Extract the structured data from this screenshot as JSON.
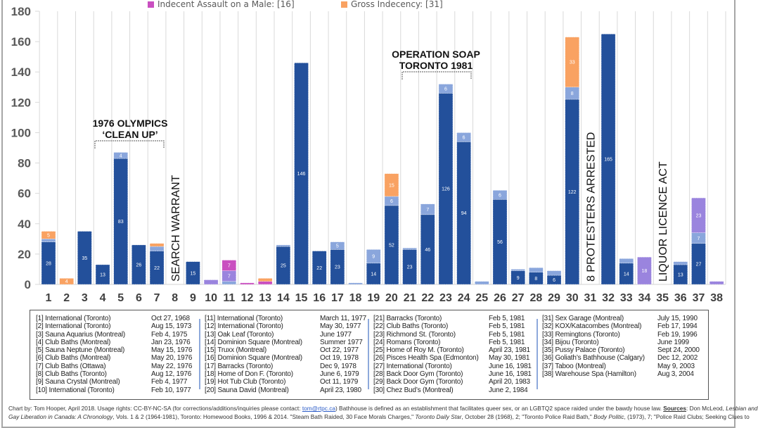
{
  "chart_data": {
    "type": "bar",
    "stacked": true,
    "categories": [
      "1",
      "2",
      "3",
      "4",
      "5",
      "6",
      "7",
      "8",
      "9",
      "10",
      "11",
      "12",
      "13",
      "14",
      "15",
      "16",
      "17",
      "18",
      "19",
      "20",
      "21",
      "22",
      "23",
      "24",
      "25",
      "26",
      "27",
      "28",
      "29",
      "30",
      "31",
      "32",
      "33",
      "34",
      "35",
      "36",
      "37",
      "38"
    ],
    "ylim": [
      0,
      180
    ],
    "yticks": [
      0,
      20,
      40,
      60,
      80,
      100,
      120,
      140,
      160,
      180
    ],
    "grid": "vertical category separators",
    "legend_placement": "top (partially cut off)",
    "series": [
      {
        "color": "#23509b",
        "values": [
          28,
          0,
          35,
          13,
          83,
          26,
          22,
          0,
          15,
          0,
          0,
          0,
          0,
          25,
          146,
          22,
          23,
          0,
          14,
          52,
          23,
          46,
          126,
          94,
          0,
          56,
          9,
          8,
          6,
          122,
          0,
          165,
          14,
          0,
          0,
          13,
          27,
          0
        ]
      },
      {
        "color": "#8aa6dc",
        "values": [
          2,
          0,
          0,
          0,
          4,
          0,
          3,
          0,
          0,
          0,
          2,
          0,
          0,
          1,
          0,
          0,
          5,
          1,
          9,
          6,
          1,
          7,
          6,
          6,
          2,
          6,
          1,
          3,
          3,
          8,
          0,
          0,
          3,
          0,
          0,
          2,
          7,
          0
        ]
      },
      {
        "color": "#9a84de",
        "values": [
          0,
          0,
          0,
          0,
          0,
          0,
          0,
          0,
          0,
          3,
          7,
          0,
          0,
          0,
          0,
          0,
          0,
          0,
          0,
          0,
          0,
          0,
          0,
          0,
          0,
          0,
          0,
          0,
          0,
          0,
          0,
          0,
          0,
          18,
          0,
          0,
          23,
          2
        ]
      },
      {
        "name": "Indecent Assault on a Male: [16]",
        "color": "#c94fc0",
        "values": [
          0,
          0,
          0,
          0,
          0,
          0,
          0,
          0,
          0,
          0,
          7,
          1,
          2,
          0,
          0,
          0,
          0,
          0,
          0,
          0,
          0,
          0,
          0,
          0,
          0,
          0,
          0,
          0,
          0,
          0,
          0,
          0,
          0,
          0,
          0,
          0,
          0,
          0
        ]
      },
      {
        "name": "Gross Indecency: [31]",
        "color": "#f9a262",
        "values": [
          5,
          4,
          0,
          0,
          0,
          0,
          2,
          0,
          0,
          0,
          0,
          0,
          2,
          0,
          0,
          0,
          0,
          0,
          0,
          15,
          0,
          0,
          0,
          0,
          0,
          0,
          0,
          0,
          0,
          33,
          0,
          0,
          0,
          0,
          0,
          0,
          0,
          0
        ]
      }
    ],
    "annotations": {
      "olympics": [
        "1976 OLYMPICS",
        "‘CLEAN UP’"
      ],
      "soap": [
        "OPERATION SOAP",
        "TORONTO 1981"
      ],
      "search_warrant": "SEARCH  WARRANT",
      "protesters": "8 PROTESTERS ARRESTED",
      "liquor": "LIQUOR LICENCE ACT"
    }
  },
  "raids": [
    [
      [
        "[1] International (Toronto)",
        "Oct 27, 1968"
      ],
      [
        "[2] International (Toronto)",
        "Aug 15, 1973"
      ],
      [
        "[3] Sauna Aquarius (Montreal)",
        "Feb 4, 1975"
      ],
      [
        "[4] Club Baths (Montreal)",
        "Jan 23, 1976"
      ],
      [
        "[5] Sauna Neptune (Montreal)",
        "May 15, 1976"
      ],
      [
        "[6] Club Baths (Montreal)",
        "May 20, 1976"
      ],
      [
        "[7] Club Baths (Ottawa)",
        "May 22, 1976"
      ],
      [
        "[8] Club Baths (Toronto)",
        "Aug 12, 1976"
      ],
      [
        "[9] Sauna Crystal (Montreal)",
        "Feb 4, 1977"
      ],
      [
        "[10] International (Toronto)",
        "Feb 10, 1977"
      ]
    ],
    [
      [
        "[11] International (Toronto)",
        "March 11, 1977"
      ],
      [
        "[12] International (Toronto)",
        "May 30, 1977"
      ],
      [
        "[13] Oak Leaf (Toronto)",
        "June 1977"
      ],
      [
        "[14] Dominion Square (Montreal)",
        "Summer 1977"
      ],
      [
        "[15] Truxx (Montreal)",
        "Oct 22, 1977"
      ],
      [
        "[16] Dominion Square (Montreal)",
        "Oct 19, 1978"
      ],
      [
        "[17] Barracks (Toronto)",
        "Dec 9, 1978"
      ],
      [
        "[18] Home of Don F. (Toronto)",
        "June 6, 1979"
      ],
      [
        "[19] Hot Tub Club (Toronto)",
        "Oct 11, 1979"
      ],
      [
        "[20] Sauna David (Montreal)",
        "April 23, 1980"
      ]
    ],
    [
      [
        "[21] Barracks (Toronto)",
        "Feb 5, 1981"
      ],
      [
        "[22] Club Baths (Toronto)",
        "Feb 5, 1981"
      ],
      [
        "[23] Richmond St. (Toronto)",
        "Feb 5, 1981"
      ],
      [
        "[24] Romans (Toronto)",
        "Feb 5, 1981"
      ],
      [
        "[25] Home of Roy M. (Toronto)",
        "April 23, 1981"
      ],
      [
        "[26] Pisces Health Spa (Edmonton)",
        "May 30, 1981"
      ],
      [
        "[27] International (Toronto)",
        "June 16, 1981"
      ],
      [
        "[28] Back Door Gym (Toronto)",
        "June 16, 1981"
      ],
      [
        "[29] Back Door Gym (Toronto)",
        "April 20, 1983"
      ],
      [
        "[30] Chez Bud’s (Montreal)",
        "June 2, 1984"
      ]
    ],
    [
      [
        "[31] Sex Garage (Montreal)",
        "July 15, 1990"
      ],
      [
        "[32] KOX/Katacombes (Montreal)",
        "Feb 17, 1994"
      ],
      [
        "[33] Remingtons (Toronto)",
        "Feb 19, 1996"
      ],
      [
        "[34] Bijou (Toronto)",
        "June 1999"
      ],
      [
        "[35] Pussy Palace (Toronto)",
        "Sept 24, 2000"
      ],
      [
        "[36] Goliath’s Bathhouse (Calgary)",
        "Dec 12, 2002"
      ],
      [
        "[37] Taboo (Montreal)",
        "May 9, 2003"
      ],
      [
        "[38] Warehouse Spa (Hamilton)",
        "Aug 3, 2004"
      ]
    ]
  ],
  "footer": {
    "line1_a": "Chart by: Tom Hooper, April 2018. Usage rights: CC-BY-NC-SA (for corrections/additions/inquiries please contact: ",
    "email": "tom@rtpc.ca",
    "line1_b": ") Bathhouse is defined as an establishment that facilitates queer sex, or an LGBTQ2 space raided under the bawdy house law. ",
    "sources_label": "Sources",
    "line1_c": ": Don McLeod, ",
    "line1_italic": "Lesbian and",
    "line2_italic": "Gay Liberation in Canada: A Chronology",
    "line2_a": ", Vols. 1 & 2 (1964-1981), Toronto: Homewood Books, 1996 & 2014. \"Steam Bath Raided, 30 Face Morals Charges,\" ",
    "line2_italic2": "Toronto Daily Star",
    "line2_b": ", October 28 (1968), 2; \"Toronto Police Raid Bath,\" ",
    "line2_italic3": "Body Politic",
    "line2_c": ", (1973), 7; \"Police Raid Clubs; Seeking Clues to"
  }
}
